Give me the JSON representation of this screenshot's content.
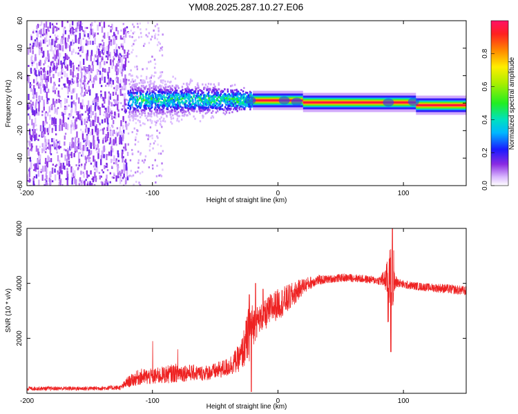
{
  "title": "YM08.2025.287.10.27.E06",
  "chart_data": [
    {
      "type": "heatmap",
      "name": "spectrogram",
      "xlabel": "Height of straight line (km)",
      "ylabel": "Frequency (Hz)",
      "xlim": [
        -200,
        150
      ],
      "ylim": [
        -60,
        60
      ],
      "x_ticks": [
        -200,
        -100,
        0,
        100
      ],
      "y_ticks": [
        -60,
        -40,
        -20,
        0,
        20,
        40,
        60
      ],
      "colorbar": {
        "label": "Normalized spectral amplitude",
        "range": [
          0.0,
          1.0
        ],
        "ticks": [
          0.0,
          0.2,
          0.4,
          0.6,
          0.8
        ],
        "tick_labels": [
          "0.0",
          "0.2",
          "0.4",
          "0.6",
          "0.8"
        ]
      },
      "features": [
        {
          "region_x": [
            -200,
            -120
          ],
          "freq_range": [
            -60,
            60
          ],
          "amplitude": 0.1,
          "description": "broadband noise"
        },
        {
          "region_x": [
            -120,
            -20
          ],
          "freq_range": [
            -10,
            15
          ],
          "amplitude": 0.35,
          "description": "spread signal"
        },
        {
          "region_x": [
            -20,
            20
          ],
          "center_freq": 2,
          "amplitude": 0.9,
          "description": "narrow line"
        },
        {
          "region_x": [
            20,
            150
          ],
          "center_freq": 0,
          "amplitude": 0.95,
          "description": "narrow line"
        }
      ]
    },
    {
      "type": "line",
      "name": "snr",
      "xlabel": "Height of straight line (km)",
      "ylabel": "SNR (10 * v/v)",
      "xlim": [
        -200,
        150
      ],
      "ylim": [
        0,
        6000
      ],
      "x_ticks": [
        -200,
        -100,
        0,
        100
      ],
      "y_ticks": [
        2000,
        4000,
        6000
      ],
      "color": "#ee2222",
      "envelope": {
        "x": [
          -200,
          -150,
          -125,
          -120,
          -110,
          -100,
          -90,
          -80,
          -70,
          -60,
          -50,
          -40,
          -30,
          -25,
          -22,
          -20,
          -15,
          -10,
          -5,
          0,
          5,
          10,
          15,
          20,
          30,
          40,
          50,
          60,
          70,
          80,
          85,
          88,
          90,
          92,
          94,
          96,
          100,
          110,
          120,
          130,
          140,
          150
        ],
        "low": [
          100,
          100,
          120,
          200,
          300,
          300,
          350,
          400,
          450,
          450,
          500,
          600,
          800,
          1000,
          1200,
          1700,
          2200,
          2300,
          2500,
          2700,
          2800,
          3000,
          3300,
          3600,
          3900,
          4000,
          4050,
          4050,
          4000,
          3950,
          3800,
          3300,
          2700,
          3300,
          3800,
          3850,
          3800,
          3750,
          3700,
          3650,
          3600,
          3550
        ],
        "high": [
          250,
          250,
          300,
          600,
          900,
          900,
          1000,
          1100,
          1050,
          1000,
          1100,
          1300,
          1800,
          2800,
          3500,
          3200,
          3200,
          3400,
          3700,
          3800,
          3900,
          4000,
          4100,
          4200,
          4300,
          4300,
          4350,
          4350,
          4300,
          4250,
          4500,
          5000,
          5500,
          4600,
          4300,
          4200,
          4100,
          4050,
          4000,
          4000,
          3950,
          3900
        ]
      },
      "spikes": [
        {
          "x": -100,
          "y": 1900
        },
        {
          "x": -80,
          "y": 1600
        },
        {
          "x": -23,
          "y": 3600
        },
        {
          "x": -21,
          "y": 50
        },
        {
          "x": -18,
          "y": 4000
        },
        {
          "x": -12,
          "y": 3800
        },
        {
          "x": 91,
          "y": 6100
        },
        {
          "x": 90,
          "y": 1500
        },
        {
          "x": 92,
          "y": 5200
        },
        {
          "x": 88,
          "y": 2600
        }
      ]
    }
  ]
}
